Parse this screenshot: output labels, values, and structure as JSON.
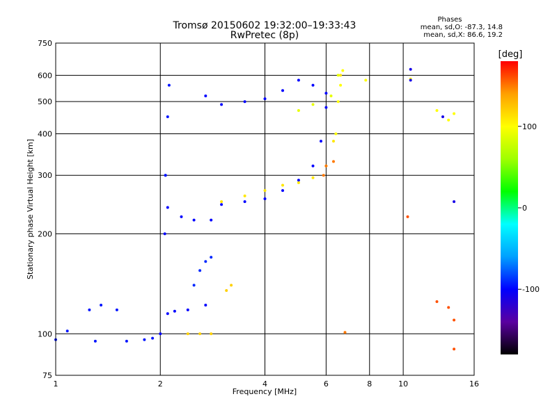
{
  "chart_data": {
    "type": "scatter",
    "title": "Tromsø 20150602 19:32:00–19:33:43",
    "subtitle": "RwPretec (8p)",
    "xlabel": "Frequency [MHz]",
    "ylabel": "Stationary phase Virtual Height [km]",
    "x_scale": "log",
    "y_scale": "log",
    "xlim": [
      1,
      16
    ],
    "ylim": [
      75,
      750
    ],
    "x_ticks": [
      1,
      2,
      4,
      6,
      8,
      10,
      16
    ],
    "x_tick_labels": [
      "1",
      "2",
      "4",
      "6",
      "8",
      "10",
      "16"
    ],
    "y_ticks": [
      75,
      100,
      200,
      300,
      400,
      500,
      600,
      750
    ],
    "y_tick_labels": [
      "75",
      "100",
      "200",
      "300",
      "400",
      "500",
      "600",
      "750"
    ],
    "grid": true,
    "phases": {
      "title": "Phases",
      "O": "mean, sd,O: -87.3, 14.8",
      "X": "mean, sd,X: 86.6, 19.2"
    },
    "colorbar": {
      "label": "[deg]",
      "range": [
        -180,
        180
      ],
      "ticks": [
        100,
        0,
        -100
      ],
      "tick_labels": [
        "100",
        "0",
        "-100"
      ],
      "colors": [
        "#000000",
        "#5a00a0",
        "#0000ff",
        "#00a0ff",
        "#00ffff",
        "#00ff00",
        "#a0ff00",
        "#ffff00",
        "#ffa000",
        "#ff0000"
      ]
    },
    "series": [
      {
        "x": [
          1.0,
          1.3,
          1.6,
          1.8,
          1.9
        ],
        "y": [
          96,
          95,
          95,
          96,
          97
        ],
        "phase": -95
      },
      {
        "x": [
          1.08,
          1.25,
          1.35,
          1.5
        ],
        "y": [
          102,
          118,
          122,
          118
        ],
        "phase": -95
      },
      {
        "x": [
          2.0,
          2.06,
          2.07
        ],
        "y": [
          100,
          200,
          300
        ],
        "phase": -100
      },
      {
        "x": [
          2.07,
          2.1,
          2.12
        ],
        "y": [
          300,
          450,
          560
        ],
        "phase": -95
      },
      {
        "x": [
          2.1,
          2.3,
          2.5,
          2.8
        ],
        "y": [
          240,
          225,
          220,
          220
        ],
        "phase": -100
      },
      {
        "x": [
          2.7,
          3.0,
          3.5,
          4.0,
          4.5,
          5.0,
          5.5,
          6.0
        ],
        "y": [
          520,
          490,
          500,
          510,
          540,
          580,
          560,
          530
        ],
        "phase": -100
      },
      {
        "x": [
          3.0,
          3.5,
          4.0,
          4.5,
          5.0,
          5.5,
          5.8,
          6.0
        ],
        "y": [
          245,
          250,
          255,
          270,
          290,
          320,
          380,
          480
        ],
        "phase": -100
      },
      {
        "x": [
          3.0,
          3.5,
          4.0,
          4.5,
          5.0,
          5.5,
          6.0,
          6.3,
          6.6
        ],
        "y": [
          250,
          260,
          270,
          280,
          285,
          295,
          320,
          380,
          600
        ],
        "phase": 110
      },
      {
        "x": [
          2.1,
          2.2,
          2.4,
          2.7
        ],
        "y": [
          115,
          117,
          118,
          122
        ],
        "phase": -100
      },
      {
        "x": [
          2.5,
          2.6,
          2.7,
          2.8
        ],
        "y": [
          140,
          155,
          165,
          170
        ],
        "phase": -90
      },
      {
        "x": [
          3.1,
          3.2
        ],
        "y": [
          135,
          140
        ],
        "phase": 120
      },
      {
        "x": [
          2.4,
          2.6,
          2.8
        ],
        "y": [
          100,
          100,
          100
        ],
        "phase": 120
      },
      {
        "x": [
          5.0,
          5.5,
          6.2,
          6.5
        ],
        "y": [
          470,
          490,
          520,
          600
        ],
        "phase": 90
      },
      {
        "x": [
          6.4,
          6.5,
          6.6,
          6.7
        ],
        "y": [
          400,
          500,
          560,
          620
        ],
        "phase": 100
      },
      {
        "x": [
          7.8,
          10.5,
          12.5,
          13.5,
          14.0
        ],
        "y": [
          580,
          585,
          470,
          440,
          460
        ],
        "phase": 100
      },
      {
        "x": [
          10.5,
          10.5,
          13.0,
          14.0
        ],
        "y": [
          625,
          580,
          450,
          250
        ],
        "phase": -110
      },
      {
        "x": [
          10.3,
          12.5,
          13.5,
          14.0,
          14.0
        ],
        "y": [
          225,
          125,
          120,
          110,
          90
        ],
        "phase": 160
      },
      {
        "x": [
          5.9,
          6.0,
          6.3,
          6.8
        ],
        "y": [
          300,
          320,
          330,
          101
        ],
        "phase": 150
      }
    ]
  }
}
